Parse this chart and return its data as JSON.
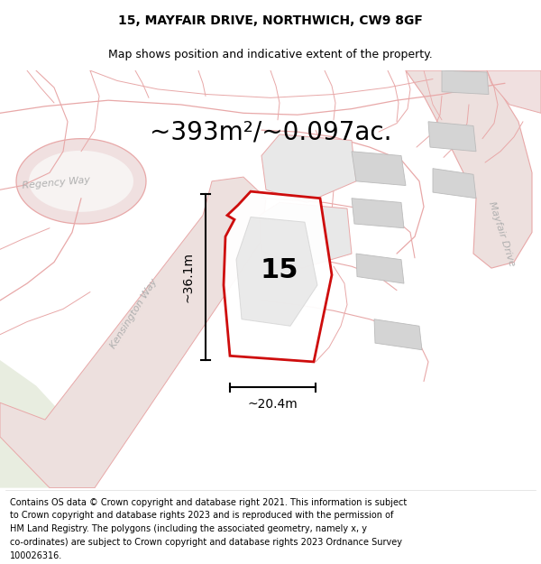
{
  "title": "15, MAYFAIR DRIVE, NORTHWICH, CW9 8GF",
  "subtitle": "Map shows position and indicative extent of the property.",
  "area_text": "~393m²/~0.097ac.",
  "width_label": "~20.4m",
  "height_label": "~36.1m",
  "number_label": "15",
  "footer_lines": [
    "Contains OS data © Crown copyright and database right 2021. This information is subject",
    "to Crown copyright and database rights 2023 and is reproduced with the permission of",
    "HM Land Registry. The polygons (including the associated geometry, namely x, y",
    "co-ordinates) are subject to Crown copyright and database rights 2023 Ordnance Survey",
    "100026316."
  ],
  "map_bg": "#f7f3f2",
  "road_edge": "#e8a8a8",
  "road_fill": "#f0e0e0",
  "kens_fill": "#ede0de",
  "mayfair_fill": "#ede0de",
  "green_fill": "#e8ede0",
  "plot_red": "#cc0000",
  "bldg_fill": "#d4d4d4",
  "bldg_edge": "#bbbbbb",
  "gray_area": "#dcdcdc",
  "title_fontsize": 10,
  "subtitle_fontsize": 9,
  "area_fontsize": 20,
  "dim_fontsize": 10,
  "num_fontsize": 22,
  "road_label_fontsize": 8,
  "footer_fontsize": 7
}
